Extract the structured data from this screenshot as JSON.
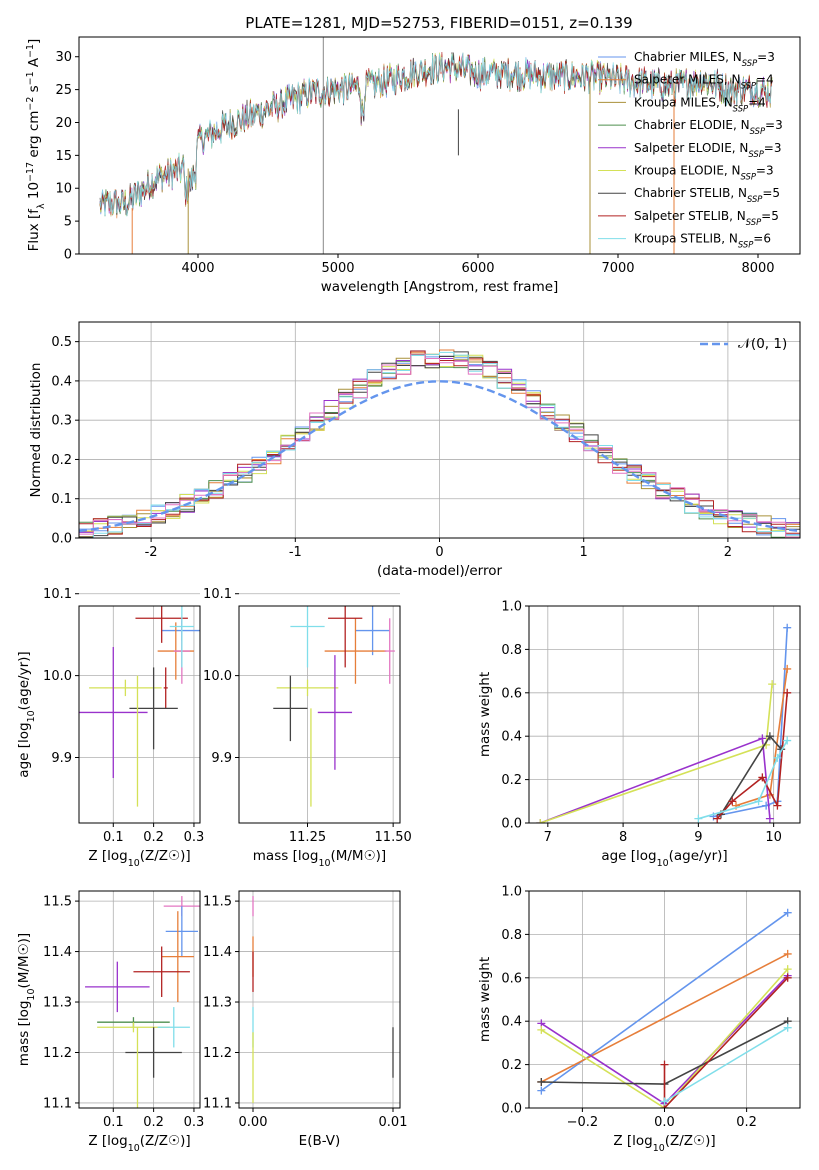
{
  "chart_data": [
    {
      "id": "spectrum",
      "type": "line",
      "title": "PLATE=1281, MJD=52753, FIBERID=0151, z=0.139",
      "xlabel": "wavelength [Angstrom, rest frame]",
      "ylabel": "Flux [f_λ 10^-17 erg cm^-2 s^-1 A^-1]",
      "xlim": [
        3150,
        8300
      ],
      "ylim": [
        0,
        33
      ],
      "xticks": [
        4000,
        5000,
        6000,
        7000,
        8000
      ],
      "yticks": [
        0,
        5,
        10,
        15,
        20,
        25,
        30
      ],
      "grid": false,
      "legend_position": "top-right",
      "continuum_points": [
        [
          3300,
          7.5
        ],
        [
          3500,
          7.8
        ],
        [
          3700,
          11.5
        ],
        [
          3900,
          13
        ],
        [
          4000,
          17
        ],
        [
          4200,
          19.5
        ],
        [
          4500,
          22
        ],
        [
          4800,
          24.5
        ],
        [
          5000,
          25
        ],
        [
          5300,
          26
        ],
        [
          5600,
          28
        ],
        [
          5800,
          28.5
        ],
        [
          6000,
          27.5
        ],
        [
          6200,
          27.5
        ],
        [
          6500,
          27
        ],
        [
          6800,
          27
        ],
        [
          7000,
          26.5
        ],
        [
          7200,
          26
        ],
        [
          7400,
          25.5
        ],
        [
          7600,
          26.5
        ],
        [
          7800,
          25
        ],
        [
          8000,
          25
        ],
        [
          8100,
          24.5
        ]
      ],
      "series": [
        {
          "name": "Chabrier MILES, N_SSP=3",
          "color": "#6495ED"
        },
        {
          "name": "Salpeter MILES, N_SSP=4",
          "color": "#E67E3A"
        },
        {
          "name": "Kroupa MILES, N_SSP=4",
          "color": "#A9913A"
        },
        {
          "name": "Chabrier ELODIE, N_SSP=3",
          "color": "#4E8F4E"
        },
        {
          "name": "Salpeter ELODIE, N_SSP=3",
          "color": "#9932CC"
        },
        {
          "name": "Kroupa ELODIE, N_SSP=3",
          "color": "#D4E157"
        },
        {
          "name": "Chabrier STELIB, N_SSP=5",
          "color": "#444444"
        },
        {
          "name": "Salpeter STELIB, N_SSP=5",
          "color": "#B22222"
        },
        {
          "name": "Kroupa STELIB, N_SSP=6",
          "color": "#80DEEA"
        }
      ]
    },
    {
      "id": "residuals",
      "type": "line",
      "xlabel": "(data-model)/error",
      "ylabel": "Normed distribution",
      "xlim": [
        -2.5,
        2.5
      ],
      "ylim": [
        0,
        0.55
      ],
      "xticks": [
        -2,
        -1,
        0,
        1,
        2
      ],
      "yticks": [
        0.0,
        0.1,
        0.2,
        0.3,
        0.4,
        0.5
      ],
      "grid": true,
      "legend_position": "top-right",
      "legend_label": "𝒩(0, 1)",
      "reference_curve": "normal(0,1)",
      "reference_color": "#6495ED",
      "histogram_colors": [
        "#6495ED",
        "#E67E3A",
        "#A9913A",
        "#4E8F4E",
        "#9932CC",
        "#D4E157",
        "#444444",
        "#B22222",
        "#80DEEA",
        "#E377C2"
      ]
    },
    {
      "id": "age-vs-Z",
      "type": "scatter",
      "xlabel": "Z [log10(Z/Z☉)]",
      "ylabel": "age  [log10(age/yr)]",
      "xlim": [
        0.015,
        0.315
      ],
      "ylim": [
        9.82,
        10.085
      ],
      "xticks": [
        0.1,
        0.2,
        0.3
      ],
      "yticks": [
        9.9,
        10.0,
        10.1
      ],
      "grid": true,
      "points": [
        {
          "x": 0.27,
          "y": 10.055,
          "xerr": 0.05,
          "yerr": 0.012,
          "color": "#6495ED"
        },
        {
          "x": 0.255,
          "y": 10.03,
          "xerr": 0.045,
          "yerr": 0.035,
          "color": "#E67E3A"
        },
        {
          "x": 0.27,
          "y": 10.03,
          "xerr": 0.02,
          "yerr": 0.04,
          "color": "#E377C2"
        },
        {
          "x": 0.22,
          "y": 10.07,
          "xerr": 0.065,
          "yerr": 0.03,
          "color": "#B22222"
        },
        {
          "x": 0.27,
          "y": 10.06,
          "xerr": 0.03,
          "yerr": 0.05,
          "color": "#80DEEA"
        },
        {
          "x": 0.23,
          "y": 9.985,
          "xerr": 0.005,
          "yerr": 0.025,
          "color": "#B22222"
        },
        {
          "x": 0.13,
          "y": 9.985,
          "xerr": 0.09,
          "yerr": 0.01,
          "color": "#D4E157"
        },
        {
          "x": 0.1,
          "y": 9.955,
          "xerr": 0.085,
          "yerr": 0.08,
          "color": "#9932CC"
        },
        {
          "x": 0.2,
          "y": 9.96,
          "xerr": 0.06,
          "yerr": 0.05,
          "color": "#444444"
        },
        {
          "x": 0.16,
          "y": 9.92,
          "xerr": 0.0,
          "yerr": 0.08,
          "color": "#D4E157"
        }
      ]
    },
    {
      "id": "age-vs-mass",
      "type": "scatter",
      "xlabel": "mass [log10(M/M☉)]",
      "ylabel": "",
      "xlim": [
        11.05,
        11.52
      ],
      "ylim": [
        9.82,
        10.085
      ],
      "xticks": [
        11.25,
        11.5
      ],
      "xtick_labels": [
        "11.25",
        "11.50"
      ],
      "yticks": [
        9.9,
        10.0,
        10.1
      ],
      "grid": true,
      "points": [
        {
          "x": 11.44,
          "y": 10.055,
          "xerr": 0.05,
          "yerr": 0.03,
          "color": "#6495ED"
        },
        {
          "x": 11.39,
          "y": 10.03,
          "xerr": 0.09,
          "yerr": 0.04,
          "color": "#E67E3A"
        },
        {
          "x": 11.49,
          "y": 10.03,
          "xerr": 0.015,
          "yerr": 0.04,
          "color": "#E377C2"
        },
        {
          "x": 11.36,
          "y": 10.07,
          "xerr": 0.05,
          "yerr": 0.06,
          "color": "#B22222"
        },
        {
          "x": 11.25,
          "y": 10.06,
          "xerr": 0.05,
          "yerr": 0.05,
          "color": "#80DEEA"
        },
        {
          "x": 11.25,
          "y": 9.985,
          "xerr": 0.09,
          "yerr": 0.01,
          "color": "#D4E157"
        },
        {
          "x": 11.33,
          "y": 9.955,
          "xerr": 0.05,
          "yerr": 0.07,
          "color": "#9932CC"
        },
        {
          "x": 11.2,
          "y": 9.96,
          "xerr": 0.05,
          "yerr": 0.04,
          "color": "#444444"
        },
        {
          "x": 11.26,
          "y": 9.9,
          "xerr": 0.0,
          "yerr": 0.06,
          "color": "#D4E157"
        }
      ]
    },
    {
      "id": "weight-vs-age",
      "type": "line",
      "xlabel": "age  [log10(age/yr)]",
      "ylabel": "mass weight",
      "xlim": [
        6.75,
        10.35
      ],
      "ylim": [
        0,
        1
      ],
      "xticks": [
        7,
        8,
        9,
        10
      ],
      "yticks": [
        0.0,
        0.2,
        0.4,
        0.6,
        0.8,
        1.0
      ],
      "grid": true,
      "series": [
        {
          "color": "#6495ED",
          "points": [
            [
              9.2,
              0.03
            ],
            [
              9.9,
              0.08
            ],
            [
              10.05,
              0.1
            ],
            [
              10.18,
              0.9
            ]
          ]
        },
        {
          "color": "#E67E3A",
          "points": [
            [
              9.5,
              0.08
            ],
            [
              9.95,
              0.13
            ],
            [
              10.18,
              0.71
            ]
          ]
        },
        {
          "color": "#9932CC",
          "points": [
            [
              6.9,
              0.0
            ],
            [
              9.85,
              0.39
            ],
            [
              9.95,
              0.02
            ]
          ]
        },
        {
          "color": "#D4E157",
          "points": [
            [
              6.9,
              0.0
            ],
            [
              9.9,
              0.36
            ],
            [
              9.98,
              0.64
            ]
          ]
        },
        {
          "color": "#444444",
          "points": [
            [
              9.3,
              0.04
            ],
            [
              9.95,
              0.4
            ],
            [
              10.1,
              0.34
            ]
          ]
        },
        {
          "color": "#B22222",
          "points": [
            [
              9.25,
              0.02
            ],
            [
              9.45,
              0.1
            ],
            [
              9.85,
              0.21
            ],
            [
              10.05,
              0.08
            ],
            [
              10.18,
              0.6
            ]
          ]
        },
        {
          "color": "#80DEEA",
          "points": [
            [
              9.0,
              0.02
            ],
            [
              9.8,
              0.1
            ],
            [
              10.05,
              0.3
            ],
            [
              10.18,
              0.38
            ]
          ]
        }
      ]
    },
    {
      "id": "mass-vs-Z",
      "type": "scatter",
      "xlabel": "Z [log10(Z/Z☉)]",
      "ylabel": "mass [log10(M/M☉)]",
      "xlim": [
        0.015,
        0.315
      ],
      "ylim": [
        11.09,
        11.52
      ],
      "xticks": [
        0.1,
        0.2,
        0.3
      ],
      "yticks": [
        11.1,
        11.2,
        11.3,
        11.4,
        11.5
      ],
      "grid": true,
      "points": [
        {
          "x": 0.27,
          "y": 11.49,
          "xerr": 0.045,
          "yerr": 0.02,
          "color": "#E377C2"
        },
        {
          "x": 0.27,
          "y": 11.44,
          "xerr": 0.04,
          "yerr": 0.05,
          "color": "#6495ED"
        },
        {
          "x": 0.26,
          "y": 11.39,
          "xerr": 0.04,
          "yerr": 0.09,
          "color": "#E67E3A"
        },
        {
          "x": 0.22,
          "y": 11.36,
          "xerr": 0.07,
          "yerr": 0.05,
          "color": "#B22222"
        },
        {
          "x": 0.11,
          "y": 11.33,
          "xerr": 0.08,
          "yerr": 0.05,
          "color": "#9932CC"
        },
        {
          "x": 0.15,
          "y": 11.26,
          "xerr": 0.09,
          "yerr": 0.01,
          "color": "#4E8F4E"
        },
        {
          "x": 0.15,
          "y": 11.25,
          "xerr": 0.09,
          "yerr": 0.01,
          "color": "#D4E157"
        },
        {
          "x": 0.25,
          "y": 11.25,
          "xerr": 0.04,
          "yerr": 0.04,
          "color": "#80DEEA"
        },
        {
          "x": 0.2,
          "y": 11.2,
          "xerr": 0.07,
          "yerr": 0.05,
          "color": "#444444"
        },
        {
          "x": 0.16,
          "y": 11.17,
          "xerr": 0.0,
          "yerr": 0.08,
          "color": "#D4E157"
        }
      ]
    },
    {
      "id": "mass-vs-EBV",
      "type": "scatter",
      "xlabel": "E(B-V)",
      "ylabel": "",
      "xlim": [
        -0.001,
        0.0105
      ],
      "ylim": [
        11.09,
        11.52
      ],
      "xticks": [
        0.0,
        0.01
      ],
      "xtick_labels": [
        "0.00",
        "0.01"
      ],
      "yticks": [
        11.1,
        11.2,
        11.3,
        11.4,
        11.5
      ],
      "grid": true,
      "points": [
        {
          "x": 0.0,
          "y": 11.49,
          "xerr": 0.0,
          "yerr": 0.02,
          "color": "#E377C2"
        },
        {
          "x": 0.0,
          "y": 11.39,
          "xerr": 0.0,
          "yerr": 0.04,
          "color": "#E67E3A"
        },
        {
          "x": 0.0,
          "y": 11.36,
          "xerr": 0.0,
          "yerr": 0.04,
          "color": "#B22222"
        },
        {
          "x": 0.0,
          "y": 11.25,
          "xerr": 0.0,
          "yerr": 0.04,
          "color": "#80DEEA"
        },
        {
          "x": 0.0,
          "y": 11.17,
          "xerr": 0.0,
          "yerr": 0.07,
          "color": "#D4E157"
        },
        {
          "x": 0.01,
          "y": 11.2,
          "xerr": 0.0,
          "yerr": 0.05,
          "color": "#444444"
        }
      ]
    },
    {
      "id": "weight-vs-Z",
      "type": "line",
      "xlabel": "Z [log10(Z/Z☉)]",
      "ylabel": "mass weight",
      "xlim": [
        -0.33,
        0.33
      ],
      "ylim": [
        0,
        1
      ],
      "xticks": [
        -0.2,
        0.0,
        0.2
      ],
      "xtick_labels": [
        "−0.2",
        "0.0",
        "0.2"
      ],
      "yticks": [
        0.0,
        0.2,
        0.4,
        0.6,
        0.8,
        1.0
      ],
      "grid": true,
      "series": [
        {
          "color": "#6495ED",
          "points": [
            [
              -0.3,
              0.08
            ],
            [
              0.3,
              0.9
            ]
          ]
        },
        {
          "color": "#E67E3A",
          "points": [
            [
              -0.3,
              0.12
            ],
            [
              0.3,
              0.71
            ]
          ]
        },
        {
          "color": "#9932CC",
          "points": [
            [
              -0.3,
              0.39
            ],
            [
              0.0,
              0.02
            ],
            [
              0.3,
              0.61
            ]
          ]
        },
        {
          "color": "#D4E157",
          "points": [
            [
              -0.3,
              0.36
            ],
            [
              0.0,
              0.0
            ],
            [
              0.3,
              0.64
            ]
          ]
        },
        {
          "color": "#444444",
          "points": [
            [
              -0.3,
              0.12
            ],
            [
              0.0,
              0.11
            ],
            [
              0.3,
              0.4
            ]
          ]
        },
        {
          "color": "#B22222",
          "points": [
            [
              0.0,
              0.2
            ],
            [
              0.0,
              0.0
            ],
            [
              0.3,
              0.6
            ]
          ]
        },
        {
          "color": "#80DEEA",
          "points": [
            [
              0.0,
              0.03
            ],
            [
              0.3,
              0.37
            ]
          ]
        }
      ]
    }
  ]
}
